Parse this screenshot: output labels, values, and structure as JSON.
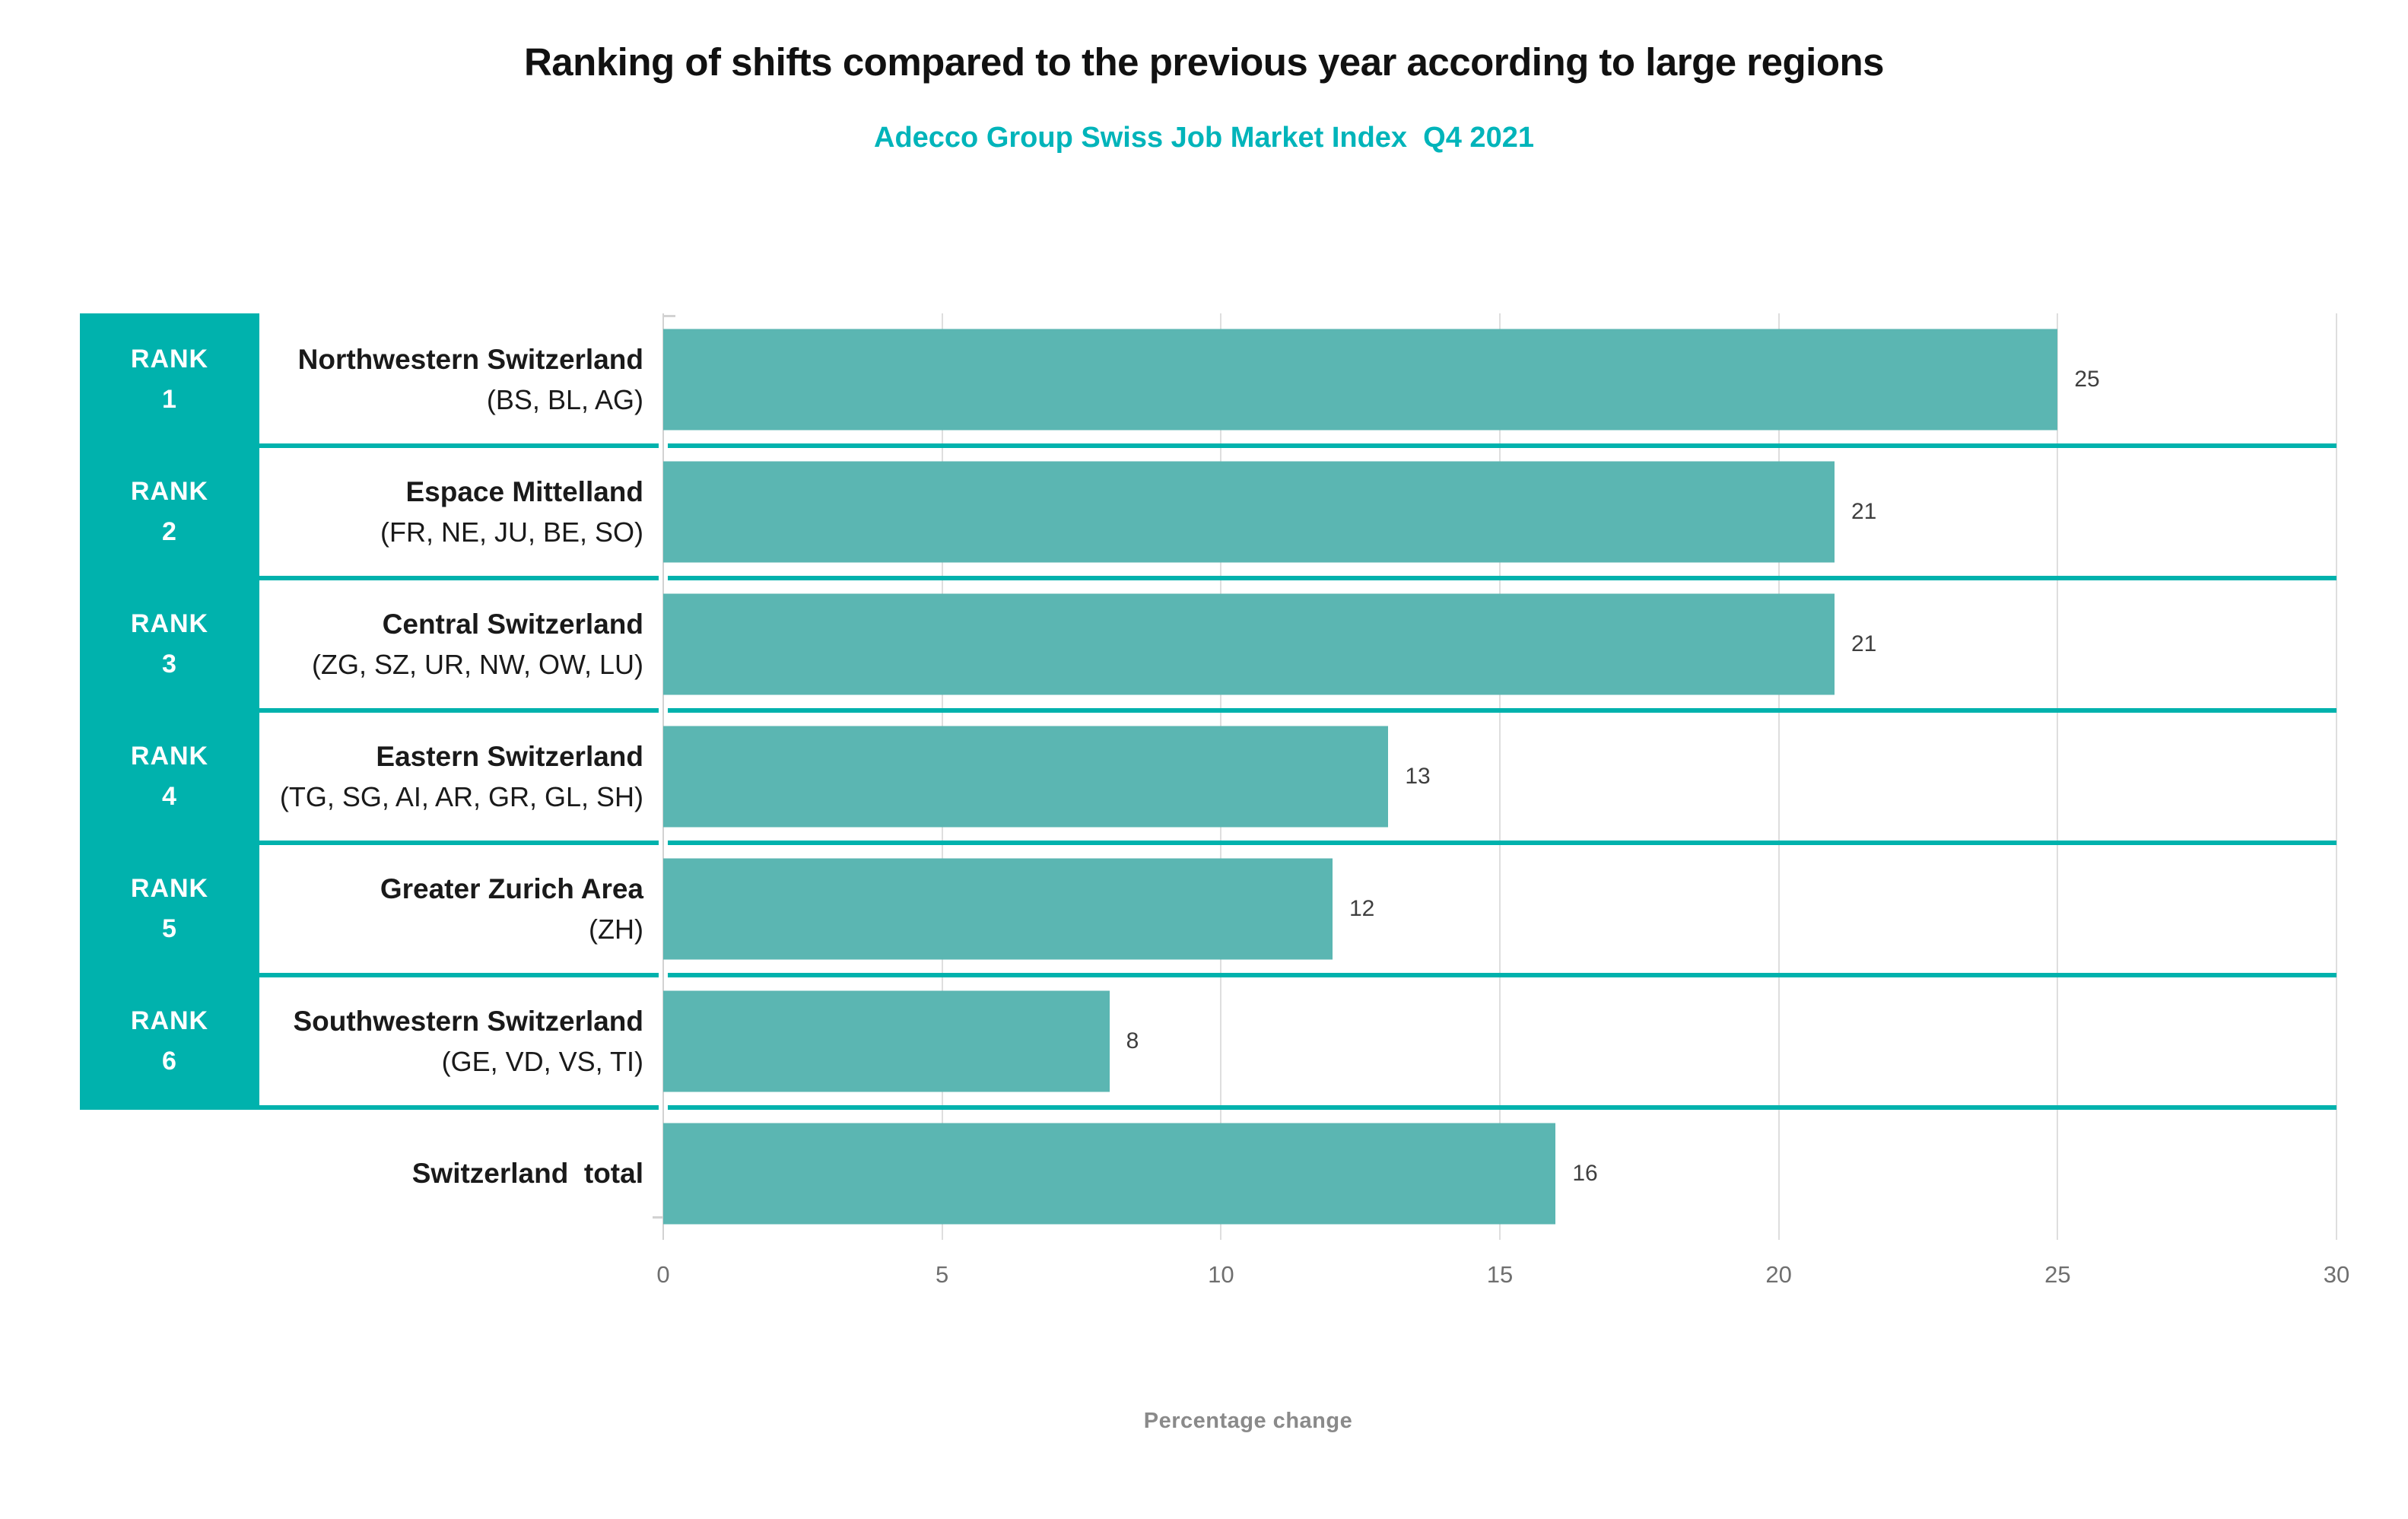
{
  "title": "Ranking of shifts compared to the previous year according to large regions",
  "subtitle": "Adecco Group Swiss Job Market Index  Q4 2021",
  "colors": {
    "accent_teal": "#00b2ad",
    "bar_teal": "#5bb6b2",
    "subtitle_teal": "#00b4ba",
    "gridline": "#dedede",
    "value_text": "#3f3f3f",
    "tick_text": "#6f6f6f",
    "axis_label_text": "#8a8a8a"
  },
  "chart_data": {
    "type": "bar",
    "orientation": "horizontal",
    "title": "Ranking of shifts compared to the previous year according to large regions",
    "subtitle": "Adecco Group Swiss Job Market Index Q4 2021",
    "xlabel": "Percentage change",
    "xlim": [
      0,
      30
    ],
    "xticks": [
      "0",
      "5",
      "10",
      "15",
      "20",
      "25",
      "30"
    ],
    "grid": "vertical gridlines on",
    "legend": "none",
    "categories": [
      "Northwestern Switzerland (BS, BL, AG)",
      "Espace Mittelland (FR, NE, JU, BE, SO)",
      "Central Switzerland (ZG, SZ, UR, NW, OW, LU)",
      "Eastern Switzerland (TG, SG, AI, AR, GR, GL, SH)",
      "Greater Zurich Area (ZH)",
      "Southwestern Switzerland (GE, VD, VS, TI)",
      "Switzerland total"
    ],
    "values": [
      25,
      21,
      21,
      13,
      12,
      8,
      16
    ],
    "rows": [
      {
        "rank_word": "RANK",
        "rank_number": "1",
        "region": "Northwestern Switzerland",
        "cantons": "(BS, BL, AG)",
        "value": "25"
      },
      {
        "rank_word": "RANK",
        "rank_number": "2",
        "region": "Espace Mittelland",
        "cantons": "(FR, NE, JU, BE, SO)",
        "value": "21"
      },
      {
        "rank_word": "RANK",
        "rank_number": "3",
        "region": "Central Switzerland",
        "cantons": "(ZG, SZ, UR, NW, OW, LU)",
        "value": "21"
      },
      {
        "rank_word": "RANK",
        "rank_number": "4",
        "region": "Eastern Switzerland",
        "cantons": "(TG, SG, AI, AR, GR, GL, SH)",
        "value": "13"
      },
      {
        "rank_word": "RANK",
        "rank_number": "5",
        "region": "Greater Zurich Area",
        "cantons": "(ZH)",
        "value": "12"
      },
      {
        "rank_word": "RANK",
        "rank_number": "6",
        "region": "Southwestern Switzerland",
        "cantons": "(GE, VD, VS, TI)",
        "value": "8"
      },
      {
        "rank_word": "",
        "rank_number": "",
        "region": "Switzerland  total",
        "cantons": "",
        "value": "16"
      }
    ]
  }
}
